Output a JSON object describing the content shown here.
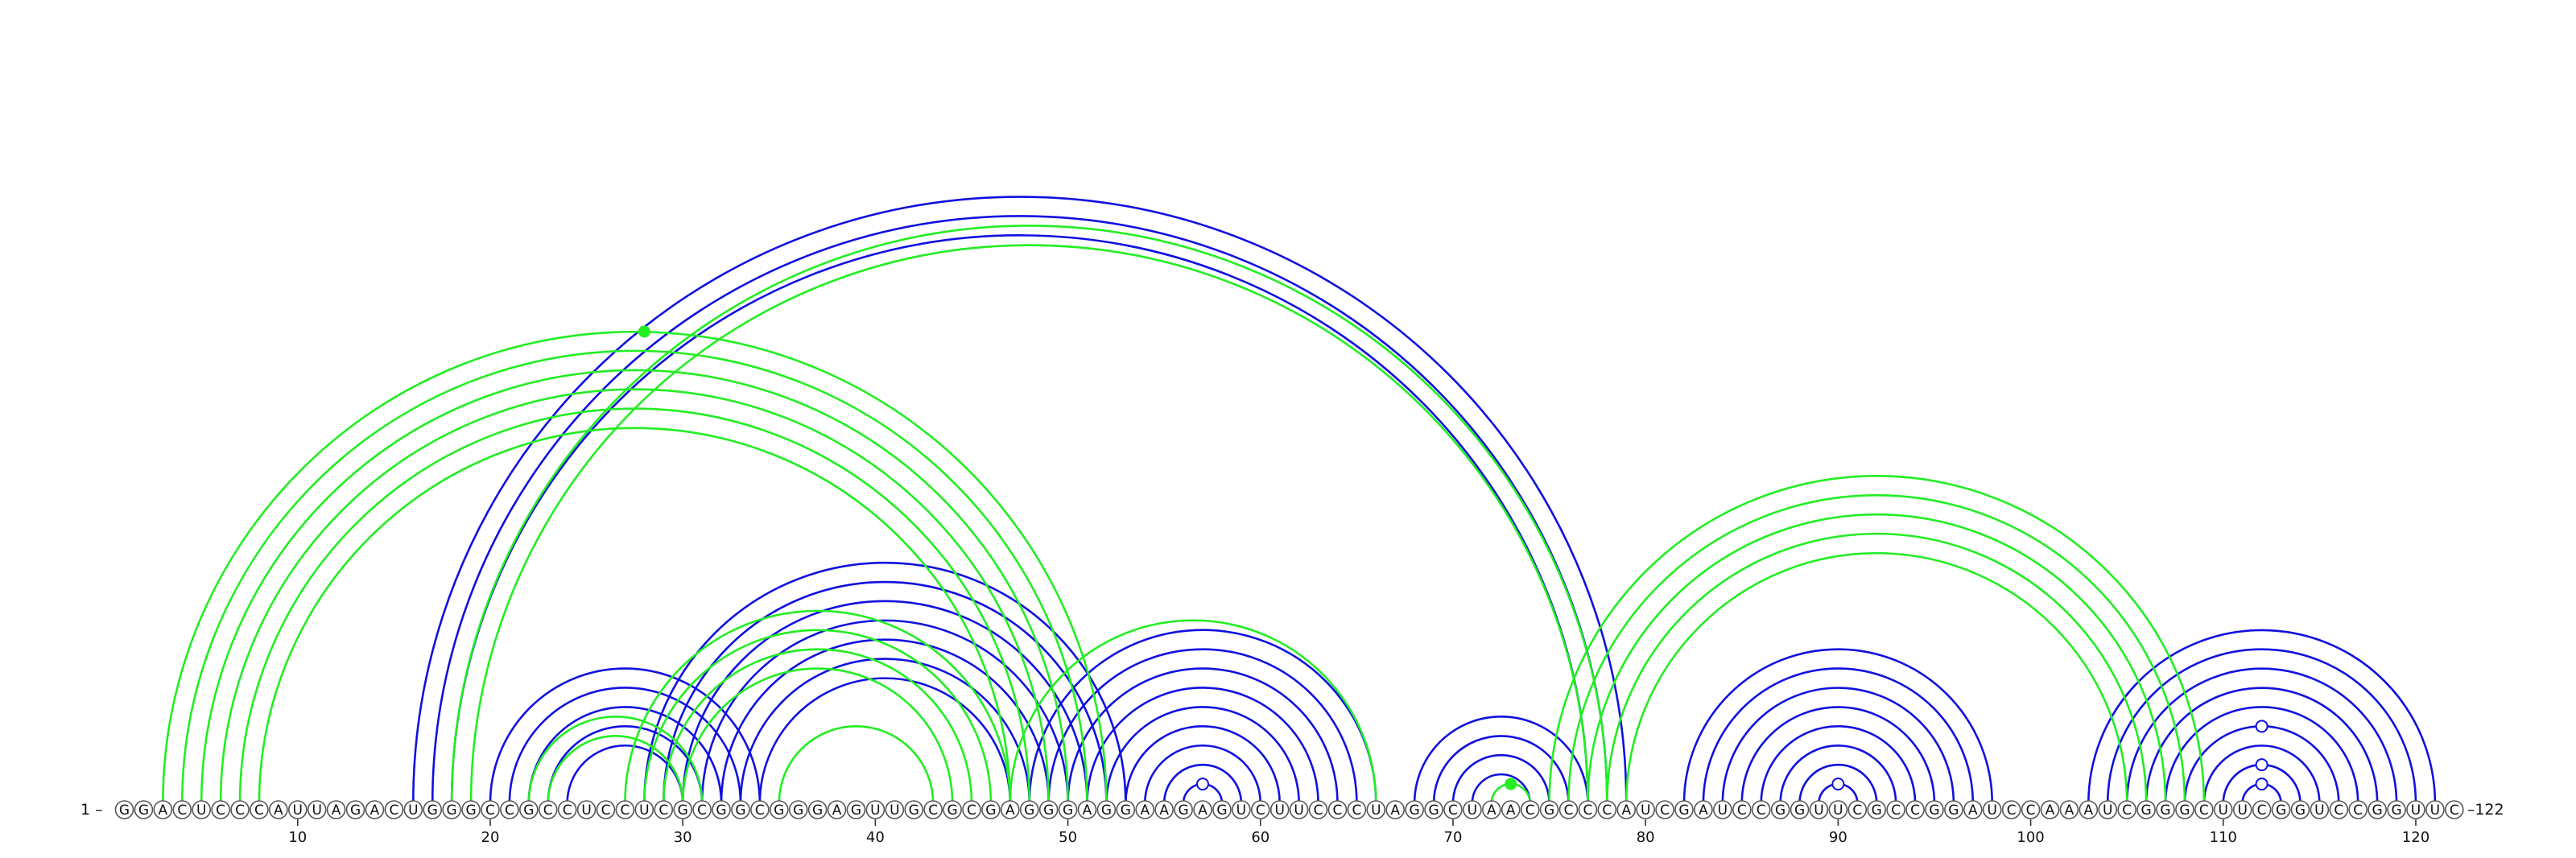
{
  "sequence": "GGACUCCCAUUAGACUGGGCCGCCUCCUCGCGGCGGGAGUUGCGCGAGGGAGGAAGAGUCUUCCCUAGGCUAACGCCCAUCGAUCCGGUUCGCCGGAUCCAAAUCGGGCUUCGGUCCGGUUC",
  "start_label": "1 –",
  "end_label": "–122",
  "tick_labels": [
    "10",
    "20",
    "30",
    "40",
    "50",
    "60",
    "70",
    "80",
    "90",
    "100",
    "110",
    "120"
  ],
  "tick_positions": [
    10,
    20,
    30,
    40,
    50,
    60,
    70,
    80,
    90,
    100,
    110,
    120
  ],
  "colors": {
    "blue": "#1010e0",
    "green": "#22ee22"
  },
  "chart_data": {
    "type": "arc",
    "length": 122,
    "blue_pairs": [
      [
        16,
        79
      ],
      [
        17,
        78
      ],
      [
        18,
        77
      ],
      [
        20,
        34
      ],
      [
        21,
        33
      ],
      [
        22,
        32
      ],
      [
        23,
        31
      ],
      [
        24,
        30
      ],
      [
        28,
        53
      ],
      [
        29,
        52
      ],
      [
        30,
        51
      ],
      [
        31,
        50
      ],
      [
        32,
        49
      ],
      [
        33,
        48
      ],
      [
        34,
        47
      ],
      [
        48,
        66
      ],
      [
        49,
        65
      ],
      [
        50,
        64
      ],
      [
        51,
        63
      ],
      [
        52,
        62
      ],
      [
        53,
        61
      ],
      [
        54,
        60
      ],
      [
        55,
        59
      ],
      [
        56,
        58
      ],
      [
        68,
        77
      ],
      [
        69,
        76
      ],
      [
        70,
        75
      ],
      [
        71,
        74
      ],
      [
        82,
        98
      ],
      [
        83,
        97
      ],
      [
        84,
        96
      ],
      [
        85,
        95
      ],
      [
        86,
        94
      ],
      [
        87,
        93
      ],
      [
        88,
        92
      ],
      [
        89,
        91
      ],
      [
        103,
        121
      ],
      [
        104,
        120
      ],
      [
        105,
        119
      ],
      [
        106,
        118
      ],
      [
        107,
        117
      ],
      [
        108,
        116
      ],
      [
        109,
        115
      ],
      [
        110,
        114
      ],
      [
        111,
        113
      ]
    ],
    "green_pairs": [
      [
        3,
        52
      ],
      [
        4,
        51
      ],
      [
        5,
        50
      ],
      [
        6,
        49
      ],
      [
        7,
        48
      ],
      [
        8,
        47
      ],
      [
        18,
        78
      ],
      [
        19,
        77
      ],
      [
        22,
        31
      ],
      [
        23,
        30
      ],
      [
        27,
        47
      ],
      [
        28,
        46
      ],
      [
        29,
        45
      ],
      [
        30,
        44
      ],
      [
        35,
        43
      ],
      [
        47,
        66
      ],
      [
        72,
        74
      ],
      [
        75,
        109
      ],
      [
        76,
        108
      ],
      [
        77,
        107
      ],
      [
        78,
        106
      ],
      [
        79,
        105
      ]
    ],
    "green_markers": [
      28,
      73
    ],
    "blue_markers": [
      56,
      90,
      111
    ]
  }
}
